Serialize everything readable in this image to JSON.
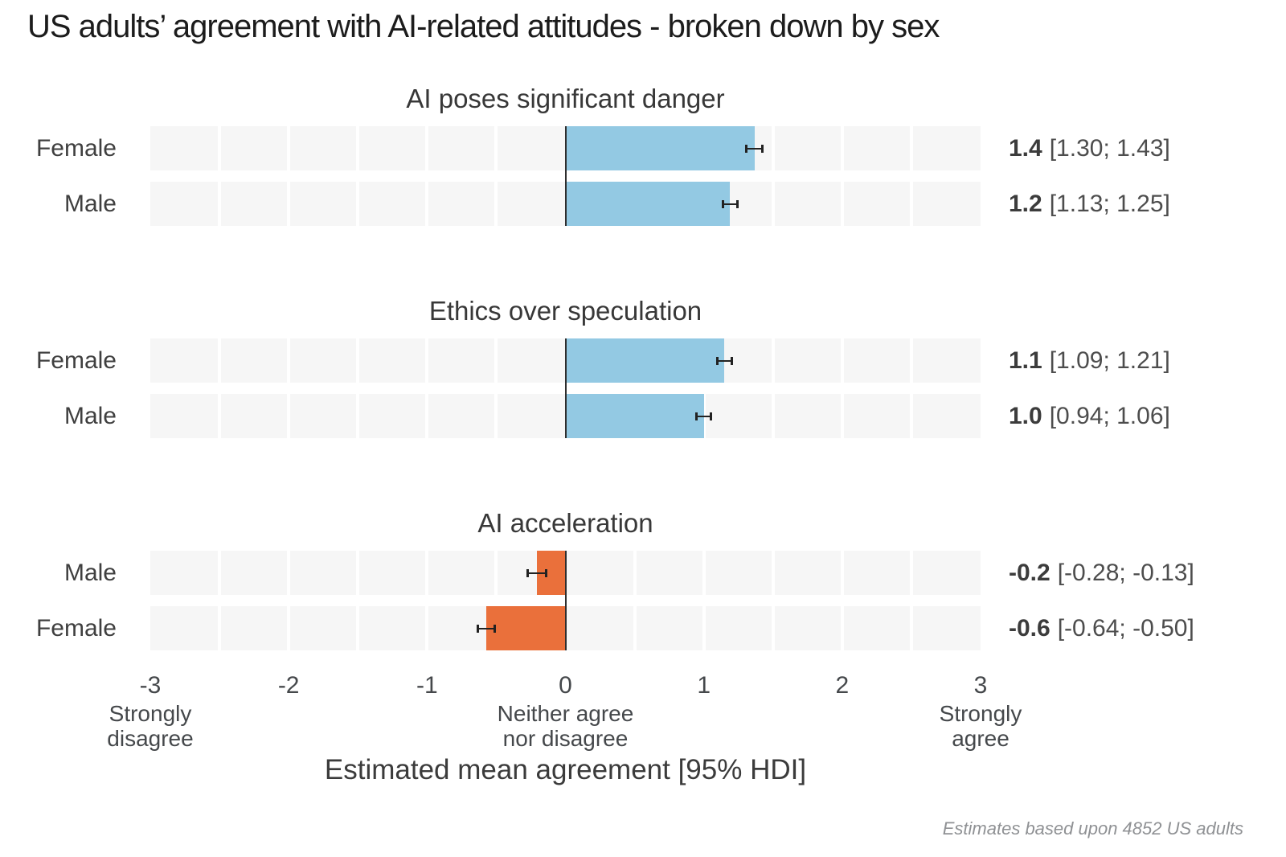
{
  "chart_data": {
    "type": "bar",
    "orientation": "horizontal",
    "title": "US adults’ agreement with AI-related attitudes - broken down by sex",
    "xlabel": "Estimated mean agreement [95% HDI]",
    "footer": "Estimates based upon 4852 US adults",
    "xlim": [
      -3,
      3
    ],
    "gridline_step": 0.5,
    "legend": "none",
    "colors": {
      "positive_bar": "#93c9e3",
      "negative_bar": "#ea703b",
      "stripe": "#f6f6f6",
      "error_bar": "#222222",
      "zero_line": "#2e2e2e"
    },
    "x_ticks": [
      {
        "value": -3,
        "label": "-3",
        "sublabel": "Strongly\ndisagree"
      },
      {
        "value": -2,
        "label": "-2",
        "sublabel": ""
      },
      {
        "value": -1,
        "label": "-1",
        "sublabel": ""
      },
      {
        "value": 0,
        "label": "0",
        "sublabel": "Neither agree\nnor disagree"
      },
      {
        "value": 1,
        "label": "1",
        "sublabel": ""
      },
      {
        "value": 2,
        "label": "2",
        "sublabel": ""
      },
      {
        "value": 3,
        "label": "3",
        "sublabel": "Strongly\nagree"
      }
    ],
    "panels": [
      {
        "title": "AI poses significant danger",
        "rows": [
          {
            "label": "Female",
            "mean": 1.365,
            "hdi_low": 1.3,
            "hdi_high": 1.43,
            "mean_label": "1.4",
            "hdi_label": "[1.30; 1.43]"
          },
          {
            "label": "Male",
            "mean": 1.19,
            "hdi_low": 1.13,
            "hdi_high": 1.25,
            "mean_label": "1.2",
            "hdi_label": "[1.13; 1.25]"
          }
        ]
      },
      {
        "title": "Ethics over speculation",
        "rows": [
          {
            "label": "Female",
            "mean": 1.15,
            "hdi_low": 1.09,
            "hdi_high": 1.21,
            "mean_label": "1.1",
            "hdi_label": "[1.09; 1.21]"
          },
          {
            "label": "Male",
            "mean": 1.0,
            "hdi_low": 0.94,
            "hdi_high": 1.06,
            "mean_label": "1.0",
            "hdi_label": "[0.94; 1.06]"
          }
        ]
      },
      {
        "title": "AI acceleration",
        "rows": [
          {
            "label": "Male",
            "mean": -0.205,
            "hdi_low": -0.28,
            "hdi_high": -0.13,
            "mean_label": "-0.2",
            "hdi_label": "[-0.28; -0.13]"
          },
          {
            "label": "Female",
            "mean": -0.57,
            "hdi_low": -0.64,
            "hdi_high": -0.5,
            "mean_label": "-0.6",
            "hdi_label": "[-0.64; -0.50]"
          }
        ]
      }
    ]
  }
}
